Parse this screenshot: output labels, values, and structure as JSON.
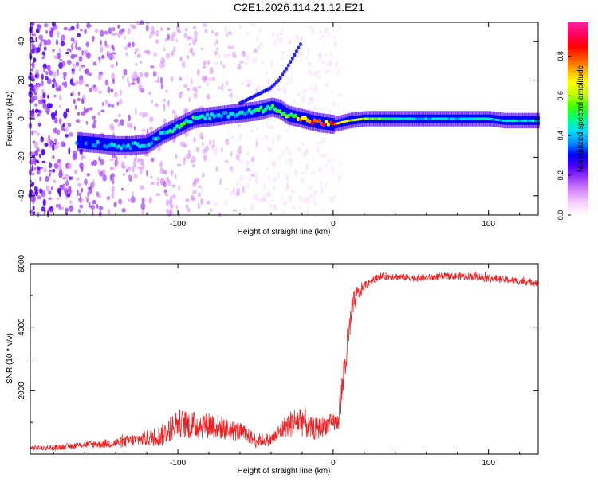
{
  "figure_title": "C2E1.2026.114.21.12.E21",
  "chart_data": [
    {
      "type": "heatmap",
      "title": "C2E1.2026.114.21.12.E21",
      "xlabel": "Height of straight line (km)",
      "ylabel": "Frequency (Hz)",
      "xlim": [
        -195,
        132
      ],
      "ylim": [
        -50,
        50
      ],
      "x_ticks": [
        -100,
        0,
        100
      ],
      "x_tick_labels": [
        "-100",
        "0",
        "100"
      ],
      "y_ticks": [
        -40,
        -20,
        0,
        20,
        40
      ],
      "y_tick_labels": [
        "-40",
        "-20",
        "0",
        "20",
        "40"
      ],
      "colorbar": {
        "label": "Normalized spectral amplitude",
        "range": [
          0,
          0.97
        ],
        "ticks": [
          0,
          0.2,
          0.4,
          0.6,
          0.8
        ],
        "tick_labels": [
          "0.0",
          "0.2",
          "0.4",
          "0.6",
          "0.8"
        ],
        "colormap": [
          "#ffffff",
          "#f5d0ff",
          "#d88cff",
          "#a040ff",
          "#5000ff",
          "#0000ff",
          "#0090ff",
          "#00e0ff",
          "#00ff80",
          "#40ff00",
          "#c0ff00",
          "#ffff00",
          "#ffb000",
          "#ff5000",
          "#ff0000",
          "#ff0060",
          "#ff20a0"
        ]
      },
      "ridge": {
        "x": [
          -165,
          -150,
          -140,
          -130,
          -120,
          -110,
          -100,
          -90,
          -80,
          -70,
          -60,
          -50,
          -40,
          -35,
          -30,
          -20,
          -10,
          0,
          10,
          20,
          40,
          60,
          80,
          100,
          110,
          132
        ],
        "frequency": [
          -12,
          -13,
          -14,
          -14,
          -13,
          -8,
          -4,
          0,
          1,
          2,
          3,
          4,
          6,
          5,
          2,
          0,
          -2,
          -3,
          -1,
          0,
          0,
          0,
          0,
          0,
          -1,
          -1
        ],
        "amplitude": [
          0.35,
          0.4,
          0.42,
          0.45,
          0.45,
          0.45,
          0.5,
          0.5,
          0.45,
          0.4,
          0.45,
          0.5,
          0.55,
          0.65,
          0.6,
          0.75,
          0.85,
          0.8,
          0.7,
          0.6,
          0.5,
          0.45,
          0.45,
          0.5,
          0.45,
          0.45
        ]
      },
      "fork_branch": {
        "x": [
          -60,
          -50,
          -40,
          -35,
          -30,
          -25,
          -20
        ],
        "frequency": [
          8,
          12,
          16,
          20,
          26,
          33,
          40
        ]
      }
    },
    {
      "type": "line",
      "title": "",
      "xlabel": "Height of straight line (km)",
      "ylabel": "SNR (10 * v/v)",
      "xlim": [
        -195,
        132
      ],
      "ylim": [
        0,
        6000
      ],
      "x_ticks": [
        -100,
        0,
        100
      ],
      "x_tick_labels": [
        "-100",
        "0",
        "100"
      ],
      "y_ticks": [
        2000,
        4000,
        6000
      ],
      "y_tick_labels": [
        "2000",
        "4000",
        "6000"
      ],
      "color": "#ee2222",
      "x": [
        -195,
        -180,
        -160,
        -140,
        -120,
        -110,
        -100,
        -90,
        -80,
        -70,
        -60,
        -50,
        -40,
        -30,
        -25,
        -20,
        -15,
        -10,
        -5,
        0,
        3,
        5,
        8,
        10,
        12,
        15,
        20,
        25,
        30,
        40,
        50,
        60,
        70,
        80,
        90,
        100,
        110,
        120,
        132
      ],
      "y": [
        200,
        200,
        300,
        350,
        500,
        600,
        1000,
        900,
        950,
        800,
        700,
        450,
        450,
        900,
        1000,
        1100,
        800,
        800,
        900,
        1000,
        1000,
        1700,
        3000,
        3600,
        4500,
        5000,
        5300,
        5500,
        5600,
        5600,
        5550,
        5550,
        5600,
        5600,
        5600,
        5550,
        5500,
        5450,
        5400
      ],
      "noise": [
        80,
        90,
        100,
        150,
        250,
        350,
        450,
        450,
        450,
        350,
        300,
        200,
        200,
        350,
        500,
        550,
        350,
        350,
        300,
        300,
        300,
        500,
        700,
        600,
        500,
        300,
        150,
        130,
        120,
        110,
        110,
        110,
        110,
        110,
        130,
        130,
        110,
        110,
        110
      ]
    }
  ]
}
